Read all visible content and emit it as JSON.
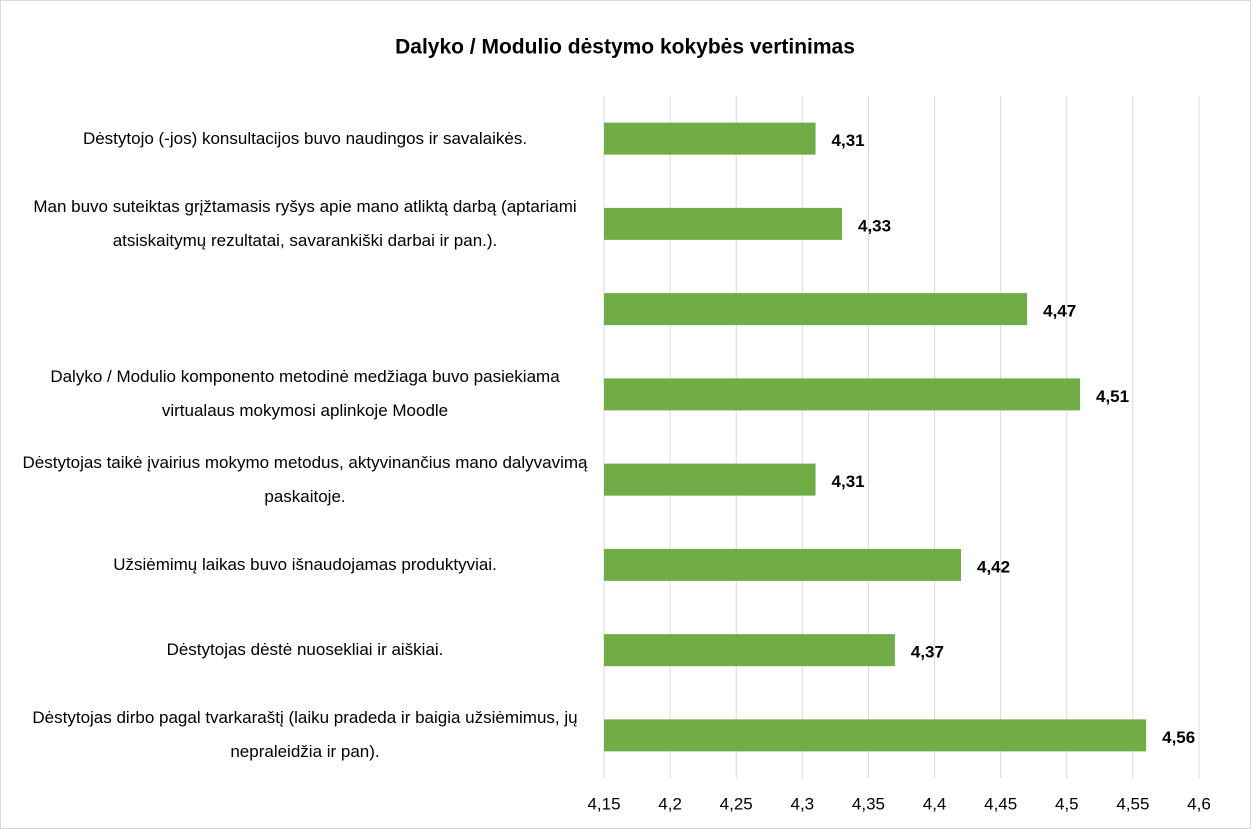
{
  "chart_data": {
    "type": "bar",
    "orientation": "horizontal",
    "title": "Dalyko / Modulio dėstymo kokybės vertinimas",
    "categories": [
      "Dėstytojo (-jos) konsultacijos buvo naudingos ir savalaikės.",
      "Man buvo suteiktas grįžtamasis ryšys apie mano atliktą darbą (aptariami atsiskaitymų rezultatai, savarankiški darbai ir pan.).",
      null,
      "Dalyko / Modulio komponento metodinė medžiaga buvo pasiekiama virtualaus mokymosi aplinkoje Moodle",
      "Dėstytojas taikė įvairius mokymo metodus, aktyvinančius mano dalyvavimą paskaitoje.",
      "Užsiėmimų laikas buvo išnaudojamas produktyviai.",
      "Dėstytojas dėstė nuosekliai ir aiškiai.",
      "Dėstytojas dirbo pagal tvarkaraštį (laiku pradeda ir baigia užsiėmimus, jų nepraleidžia ir pan)."
    ],
    "values": [
      4.31,
      4.33,
      4.47,
      4.51,
      4.31,
      4.42,
      4.37,
      4.56
    ],
    "value_labels": [
      "4,31",
      "4,33",
      "4,47",
      "4,51",
      "4,31",
      "4,42",
      "4,37",
      "4,56"
    ],
    "color": "#70ad47",
    "xlim": [
      4.15,
      4.6
    ],
    "xticks": [
      {
        "value": 4.15,
        "label": "4,15"
      },
      {
        "value": 4.2,
        "label": "4,2"
      },
      {
        "value": 4.25,
        "label": "4,25"
      },
      {
        "value": 4.3,
        "label": "4,3"
      },
      {
        "value": 4.35,
        "label": "4,35"
      },
      {
        "value": 4.4,
        "label": "4,4"
      },
      {
        "value": 4.45,
        "label": "4,45"
      },
      {
        "value": 4.5,
        "label": "4,5"
      },
      {
        "value": 4.55,
        "label": "4,55"
      },
      {
        "value": 4.6,
        "label": "4,6"
      }
    ],
    "grid": true
  }
}
